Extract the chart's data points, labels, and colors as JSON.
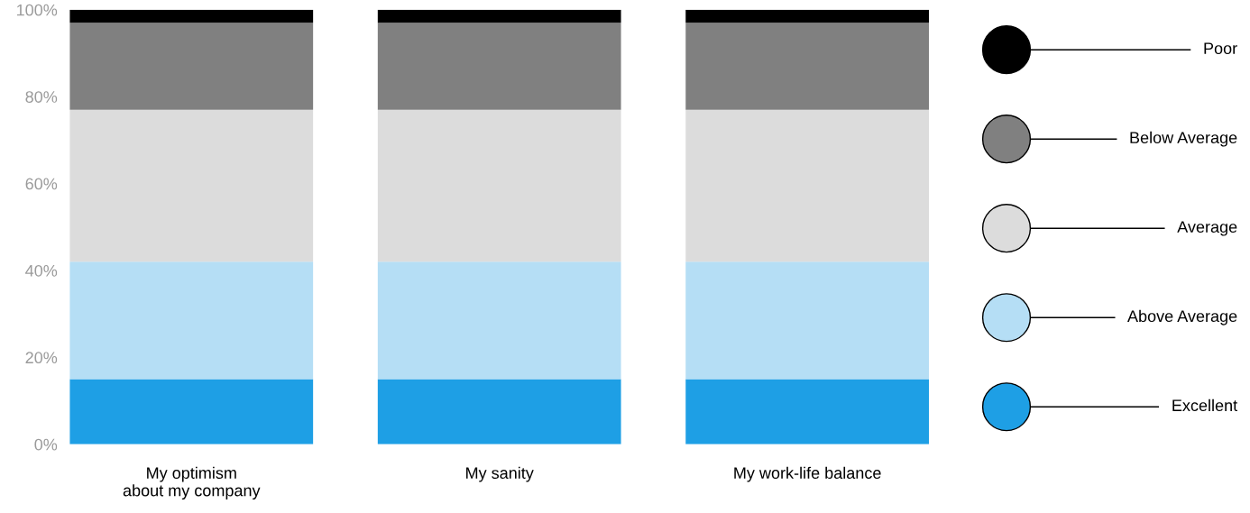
{
  "chart_data": {
    "type": "bar",
    "stacked": true,
    "categories": [
      "My optimism\nabout my company",
      "My sanity",
      "My work-life balance"
    ],
    "series": [
      {
        "name": "Excellent",
        "color": "#1e9fe5",
        "values": [
          15,
          15,
          15
        ]
      },
      {
        "name": "Above Average",
        "color": "#b5def5",
        "values": [
          27,
          27,
          27
        ]
      },
      {
        "name": "Average",
        "color": "#dcdcdc",
        "values": [
          35,
          35,
          35
        ]
      },
      {
        "name": "Below Average",
        "color": "#808080",
        "values": [
          20,
          20,
          20
        ]
      },
      {
        "name": "Poor",
        "color": "#000000",
        "values": [
          3,
          3,
          3
        ]
      }
    ],
    "ylim": [
      0,
      100
    ],
    "yticks": [
      {
        "value": 0,
        "label": "0%"
      },
      {
        "value": 20,
        "label": "20%"
      },
      {
        "value": 40,
        "label": "40%"
      },
      {
        "value": 60,
        "label": "60%"
      },
      {
        "value": 80,
        "label": "80%"
      },
      {
        "value": 100,
        "label": "100%"
      }
    ],
    "grid": false,
    "legend": "right",
    "marker": "circle"
  }
}
